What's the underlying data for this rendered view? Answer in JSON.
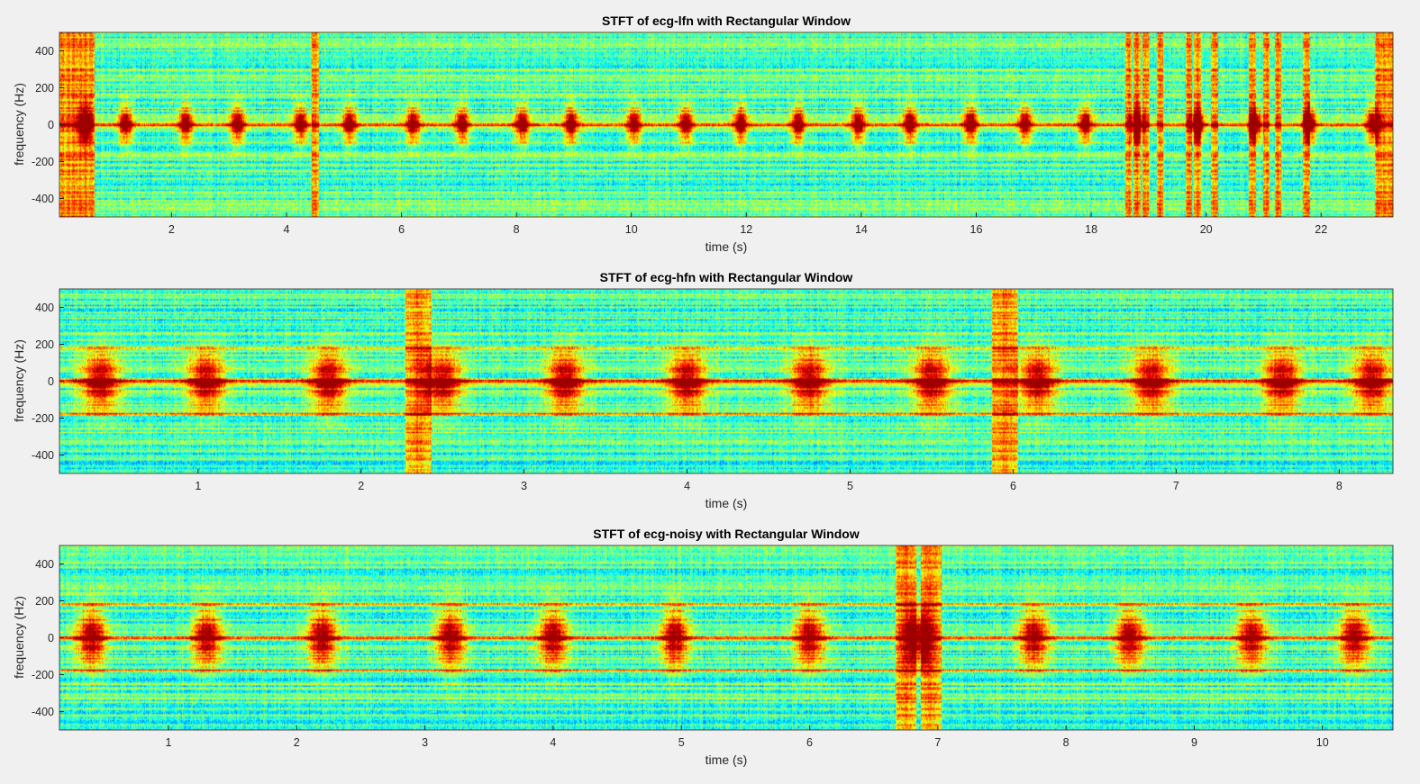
{
  "chart_data": [
    {
      "type": "heatmap",
      "title": "STFT of ecg-lfn with Rectangular Window",
      "xlabel": "time (s)",
      "ylabel": "frequency (Hz)",
      "xlim": [
        0.05,
        23.25
      ],
      "ylim": [
        -500,
        500
      ],
      "xticks": [
        2,
        4,
        6,
        8,
        10,
        12,
        14,
        16,
        18,
        20,
        22
      ],
      "yticks": [
        400,
        200,
        0,
        -200,
        -400
      ],
      "colormap": "jet",
      "grid": false,
      "beat_times_s": [
        0.5,
        1.2,
        2.25,
        3.15,
        4.25,
        5.1,
        6.2,
        7.05,
        8.1,
        8.95,
        10.05,
        10.95,
        11.9,
        12.9,
        13.95,
        14.85,
        15.9,
        16.85,
        17.9,
        18.8,
        19.85,
        20.85,
        21.8,
        22.9
      ],
      "broadband_columns_s": [
        0.1,
        0.2,
        0.3,
        0.4,
        0.5,
        0.6,
        4.5,
        18.65,
        18.8,
        18.95,
        19.2,
        19.7,
        19.85,
        20.15,
        20.8,
        21.05,
        21.25,
        21.75,
        23.0,
        23.1,
        23.2
      ],
      "noise_rows_hz": []
    },
    {
      "type": "heatmap",
      "title": "STFT of ecg-hfn with Rectangular Window",
      "xlabel": "time (s)",
      "ylabel": "frequency (Hz)",
      "xlim": [
        0.15,
        8.33
      ],
      "ylim": [
        -500,
        500
      ],
      "xticks": [
        1,
        2,
        3,
        4,
        5,
        6,
        7,
        8
      ],
      "yticks": [
        400,
        200,
        0,
        -200,
        -400
      ],
      "colormap": "jet",
      "grid": false,
      "beat_times_s": [
        0.4,
        1.05,
        1.8,
        2.5,
        3.25,
        4.0,
        4.75,
        5.5,
        6.15,
        6.85,
        7.65,
        8.2
      ],
      "broadband_columns_s": [
        2.35,
        5.95
      ],
      "noise_rows_hz": [
        180,
        -180
      ]
    },
    {
      "type": "heatmap",
      "title": "STFT of ecg-noisy with Rectangular Window",
      "xlabel": "time (s)",
      "ylabel": "frequency (Hz)",
      "xlim": [
        0.15,
        10.55
      ],
      "ylim": [
        -500,
        500
      ],
      "xticks": [
        1,
        2,
        3,
        4,
        5,
        6,
        7,
        8,
        9,
        10
      ],
      "yticks": [
        400,
        200,
        0,
        -200,
        -400
      ],
      "colormap": "jet",
      "grid": false,
      "beat_times_s": [
        0.4,
        1.3,
        2.2,
        3.2,
        4.0,
        4.95,
        6.0,
        6.85,
        7.75,
        8.5,
        9.45,
        10.25
      ],
      "broadband_columns_s": [
        6.75,
        6.95
      ],
      "noise_rows_hz": [
        180,
        -180
      ]
    }
  ]
}
